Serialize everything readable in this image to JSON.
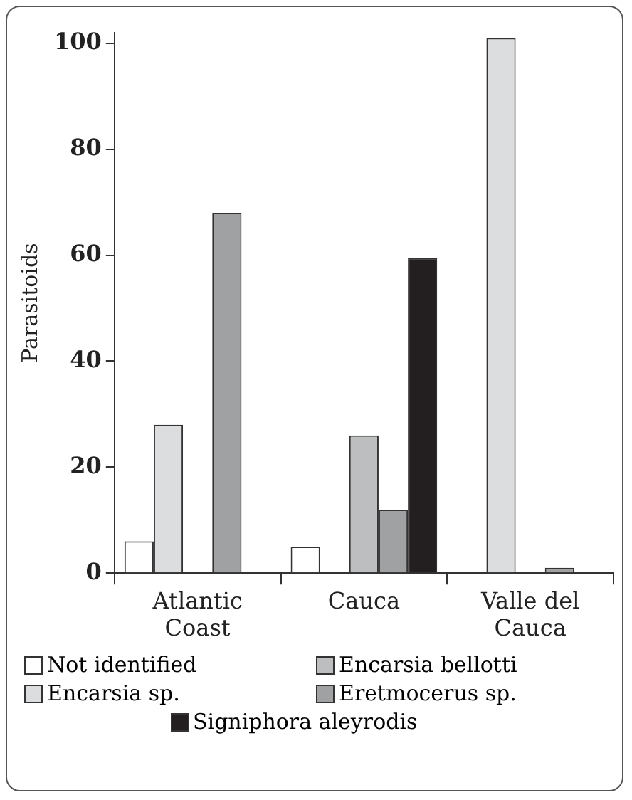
{
  "chart_data": {
    "type": "bar",
    "ylabel": "Parasitoids",
    "categories": [
      "Atlantic Coast",
      "Cauca",
      "Valle del Cauca"
    ],
    "series": [
      {
        "name": "Not identified",
        "color": "#ffffff",
        "values": [
          6,
          5,
          null
        ]
      },
      {
        "name": "Encarsia sp.",
        "color": "#dcdddf",
        "values": [
          28,
          null,
          101
        ]
      },
      {
        "name": "Encarsia bellotti",
        "color": "#bdbec0",
        "values": [
          null,
          26,
          null
        ]
      },
      {
        "name": "Eretmocerus sp.",
        "color": "#a0a1a3",
        "values": [
          68,
          12,
          1
        ]
      },
      {
        "name": "Signiphora aleyrodis",
        "color": "#231f20",
        "values": [
          null,
          59.5,
          null
        ]
      }
    ],
    "ylim": [
      0,
      102
    ],
    "yticks": [
      0,
      20,
      40,
      60,
      80,
      100
    ],
    "grid": false,
    "legend": "bottom"
  }
}
